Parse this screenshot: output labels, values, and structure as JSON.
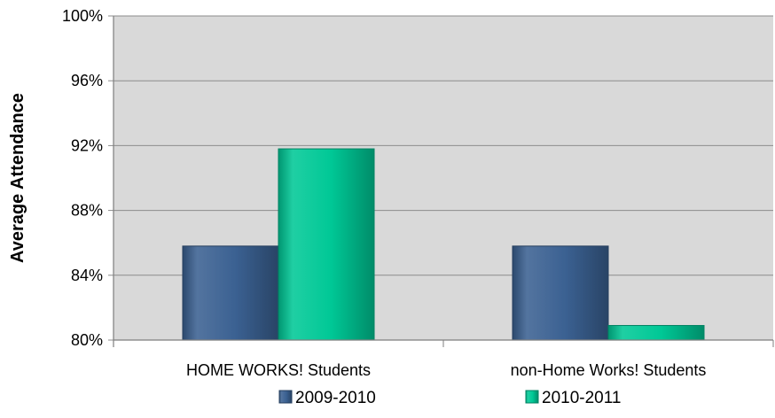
{
  "chart_data": {
    "type": "bar",
    "title": "",
    "xlabel": "",
    "ylabel": "Average Attendance",
    "categories": [
      "HOME WORKS! Students",
      "non-Home Works! Students"
    ],
    "series": [
      {
        "name": "2009-2010",
        "values": [
          85.8,
          85.8
        ],
        "color": "#3b6192"
      },
      {
        "name": "2010-2011",
        "values": [
          91.8,
          80.9
        ],
        "color": "#00c896"
      }
    ],
    "ylim": [
      80,
      100
    ],
    "yticks": [
      80,
      84,
      88,
      92,
      96,
      100
    ],
    "ytick_labels": [
      "80%",
      "84%",
      "88%",
      "92%",
      "96%",
      "100%"
    ],
    "grid": true,
    "legend": "bottom",
    "plot_background": "#d9d9d9"
  }
}
